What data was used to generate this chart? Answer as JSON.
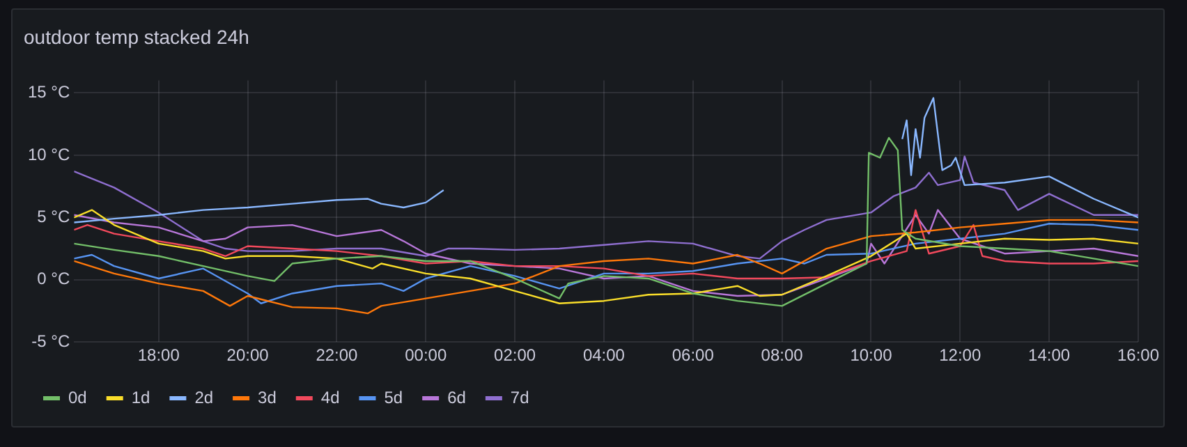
{
  "chart_data": {
    "type": "line",
    "title": "outdoor temp stacked 24h",
    "xlim": [
      "--01-01T16:06",
      "--01-02T16:00"
    ],
    "ylim": [
      -5,
      16
    ],
    "xticks": [
      {
        "value": "--01-01T18:00",
        "label": "18:00"
      },
      {
        "value": "--01-01T20:00",
        "label": "20:00"
      },
      {
        "value": "--01-01T22:00",
        "label": "22:00"
      },
      {
        "value": "--01-02T00:00",
        "label": "00:00"
      },
      {
        "value": "--01-02T02:00",
        "label": "02:00"
      },
      {
        "value": "--01-02T04:00",
        "label": "04:00"
      },
      {
        "value": "--01-02T06:00",
        "label": "06:00"
      },
      {
        "value": "--01-02T08:00",
        "label": "08:00"
      },
      {
        "value": "--01-02T10:00",
        "label": "10:00"
      },
      {
        "value": "--01-02T12:00",
        "label": "12:00"
      },
      {
        "value": "--01-02T14:00",
        "label": "14:00"
      },
      {
        "value": "--01-02T16:00",
        "label": "16:00"
      }
    ],
    "yticks": [
      {
        "value": -5,
        "label": "-5 °C"
      },
      {
        "value": 0,
        "label": "0 °C"
      },
      {
        "value": 5,
        "label": "5 °C"
      },
      {
        "value": 10,
        "label": "10 °C"
      },
      {
        "value": 15,
        "label": "15 °C"
      }
    ],
    "grid": true,
    "legend": "bottom left",
    "marker": "none",
    "line_style": "solid",
    "series": [
      {
        "name": "0d",
        "color": "#73bf69",
        "x": [
          "--01-01T16:06",
          "--01-01T17:00",
          "--01-01T18:00",
          "--01-01T19:00",
          "--01-01T20:00",
          "--01-01T20:36",
          "--01-01T21:00",
          "--01-01T22:00",
          "--01-01T23:00",
          "--01-02T00:00",
          "--01-02T01:00",
          "--01-02T02:00",
          "--01-02T03:00",
          "--01-02T03:12",
          "--01-02T04:00",
          "--01-02T05:00",
          "--01-02T06:00",
          "--01-02T07:00",
          "--01-02T08:00",
          "--01-02T09:00",
          "--01-02T09:54",
          "--01-02T09:57",
          "--01-02T10:12",
          "--01-02T10:24",
          "--01-02T10:36",
          "--01-02T10:42",
          "--01-02T11:00",
          "--01-02T12:00",
          "--01-02T13:00",
          "--01-02T14:00",
          "--01-02T15:00",
          "--01-02T16:00"
        ],
        "values": [
          2.9,
          2.4,
          1.9,
          1.1,
          0.3,
          -0.1,
          1.3,
          1.7,
          1.9,
          1.5,
          1.5,
          0.1,
          -1.5,
          -0.3,
          0.3,
          0.1,
          -1.1,
          -1.7,
          -2.1,
          -0.3,
          1.3,
          10.2,
          9.8,
          11.4,
          10.4,
          4.0,
          3.3,
          2.7,
          2.5,
          2.3,
          1.7,
          1.1
        ]
      },
      {
        "name": "1d",
        "color": "#fade2a",
        "x": [
          "--01-01T16:06",
          "--01-01T16:30",
          "--01-01T17:00",
          "--01-01T18:00",
          "--01-01T19:00",
          "--01-01T19:30",
          "--01-01T20:00",
          "--01-01T21:00",
          "--01-01T22:00",
          "--01-01T22:48",
          "--01-01T23:00",
          "--01-02T00:00",
          "--01-02T01:00",
          "--01-02T02:00",
          "--01-02T03:00",
          "--01-02T04:00",
          "--01-02T05:00",
          "--01-02T06:00",
          "--01-02T07:00",
          "--01-02T07:30",
          "--01-02T08:00",
          "--01-02T09:00",
          "--01-02T10:00",
          "--01-02T10:48",
          "--01-02T11:00",
          "--01-02T12:00",
          "--01-02T13:00",
          "--01-02T14:00",
          "--01-02T15:00",
          "--01-02T16:00"
        ],
        "values": [
          5.0,
          5.6,
          4.4,
          2.9,
          2.3,
          1.7,
          1.9,
          1.9,
          1.7,
          0.9,
          1.3,
          0.5,
          0.1,
          -0.9,
          -1.9,
          -1.7,
          -1.2,
          -1.1,
          -0.5,
          -1.3,
          -1.2,
          0.3,
          1.9,
          3.7,
          2.5,
          2.9,
          3.3,
          3.2,
          3.3,
          2.9
        ]
      },
      {
        "name": "2d",
        "color": "#8ab8ff",
        "x": [
          "--01-01T16:06",
          "--01-01T17:00",
          "--01-01T18:00",
          "--01-01T19:00",
          "--01-01T20:00",
          "--01-01T21:00",
          "--01-01T22:00",
          "--01-01T22:42",
          "--01-01T23:00",
          "--01-01T23:30",
          "--01-02T00:00",
          "--01-02T00:24",
          "--01-02T06:00",
          "--01-02T10:42",
          "--01-02T10:48",
          "--01-02T10:54",
          "--01-02T11:00",
          "--01-02T11:06",
          "--01-02T11:12",
          "--01-02T11:24",
          "--01-02T11:36",
          "--01-02T11:48",
          "--01-02T11:54",
          "--01-02T12:06",
          "--01-02T13:00",
          "--01-02T14:00",
          "--01-02T15:00",
          "--01-02T16:00"
        ],
        "values": [
          4.6,
          4.9,
          5.2,
          5.6,
          5.8,
          6.1,
          6.4,
          6.5,
          6.1,
          5.8,
          6.2,
          7.2,
          null,
          11.3,
          12.8,
          8.4,
          12.1,
          9.8,
          13.0,
          14.6,
          8.8,
          9.2,
          9.8,
          7.6,
          7.8,
          8.3,
          6.5,
          5.0
        ]
      },
      {
        "name": "3d",
        "color": "#ff780a",
        "x": [
          "--01-01T16:06",
          "--01-01T17:00",
          "--01-01T18:00",
          "--01-01T19:00",
          "--01-01T19:36",
          "--01-01T20:00",
          "--01-01T21:00",
          "--01-01T22:00",
          "--01-01T22:42",
          "--01-01T23:00",
          "--01-02T00:00",
          "--01-02T01:00",
          "--01-02T02:00",
          "--01-02T03:00",
          "--01-02T04:00",
          "--01-02T05:00",
          "--01-02T06:00",
          "--01-02T07:00",
          "--01-02T07:30",
          "--01-02T08:00",
          "--01-02T09:00",
          "--01-02T10:00",
          "--01-02T11:00",
          "--01-02T12:00",
          "--01-02T13:00",
          "--01-02T14:00",
          "--01-02T15:00",
          "--01-02T16:00"
        ],
        "values": [
          1.5,
          0.5,
          -0.3,
          -0.9,
          -2.1,
          -1.3,
          -2.2,
          -2.3,
          -2.7,
          -2.1,
          -1.5,
          -0.9,
          -0.3,
          1.1,
          1.5,
          1.7,
          1.3,
          2.0,
          1.3,
          0.5,
          2.5,
          3.5,
          3.8,
          4.2,
          4.5,
          4.8,
          4.8,
          4.6
        ]
      },
      {
        "name": "4d",
        "color": "#f2495c",
        "x": [
          "--01-01T16:06",
          "--01-01T16:24",
          "--01-01T17:00",
          "--01-01T18:00",
          "--01-01T19:00",
          "--01-01T19:30",
          "--01-01T20:00",
          "--01-01T21:00",
          "--01-01T22:00",
          "--01-01T23:00",
          "--01-02T00:00",
          "--01-02T01:00",
          "--01-02T02:00",
          "--01-02T03:00",
          "--01-02T04:00",
          "--01-02T05:00",
          "--01-02T06:00",
          "--01-02T07:00",
          "--01-02T08:00",
          "--01-02T09:00",
          "--01-02T10:00",
          "--01-02T10:48",
          "--01-02T11:00",
          "--01-02T11:18",
          "--01-02T12:00",
          "--01-02T12:18",
          "--01-02T12:30",
          "--01-02T13:00",
          "--01-02T14:00",
          "--01-02T15:00",
          "--01-02T16:00"
        ],
        "values": [
          4.0,
          4.4,
          3.7,
          3.1,
          2.5,
          1.9,
          2.7,
          2.5,
          2.3,
          1.9,
          1.3,
          1.5,
          1.1,
          1.1,
          0.9,
          0.3,
          0.5,
          0.1,
          0.1,
          0.2,
          1.5,
          2.3,
          5.6,
          2.1,
          2.7,
          4.4,
          1.9,
          1.5,
          1.3,
          1.3,
          1.5
        ]
      },
      {
        "name": "5d",
        "color": "#5794f2",
        "x": [
          "--01-01T16:06",
          "--01-01T16:30",
          "--01-01T17:00",
          "--01-01T18:00",
          "--01-01T19:00",
          "--01-01T20:00",
          "--01-01T20:18",
          "--01-01T21:00",
          "--01-01T22:00",
          "--01-01T23:00",
          "--01-01T23:30",
          "--01-02T00:00",
          "--01-02T01:00",
          "--01-02T02:00",
          "--01-02T03:00",
          "--01-02T04:00",
          "--01-02T05:00",
          "--01-02T06:00",
          "--01-02T07:00",
          "--01-02T08:00",
          "--01-02T08:30",
          "--01-02T09:00",
          "--01-02T10:00",
          "--01-02T11:00",
          "--01-02T12:00",
          "--01-02T13:00",
          "--01-02T14:00",
          "--01-02T15:00",
          "--01-02T16:00"
        ],
        "values": [
          1.7,
          2.0,
          1.1,
          0.1,
          0.9,
          -1.1,
          -1.9,
          -1.1,
          -0.5,
          -0.3,
          -0.9,
          0.1,
          1.1,
          0.3,
          -0.7,
          0.5,
          0.5,
          0.7,
          1.3,
          1.7,
          1.3,
          2.0,
          2.1,
          2.9,
          3.3,
          3.7,
          4.5,
          4.4,
          4.0
        ]
      },
      {
        "name": "6d",
        "color": "#b877d9",
        "x": [
          "--01-01T16:06",
          "--01-01T17:00",
          "--01-01T18:00",
          "--01-01T19:00",
          "--01-01T19:30",
          "--01-01T20:00",
          "--01-01T21:00",
          "--01-01T22:00",
          "--01-01T23:00",
          "--01-01T23:30",
          "--01-02T00:00",
          "--01-02T01:00",
          "--01-02T02:00",
          "--01-02T03:00",
          "--01-02T04:00",
          "--01-02T05:00",
          "--01-02T06:00",
          "--01-02T07:00",
          "--01-02T08:00",
          "--01-02T09:00",
          "--01-02T09:54",
          "--01-02T10:00",
          "--01-02T10:18",
          "--01-02T11:00",
          "--01-02T11:18",
          "--01-02T11:30",
          "--01-02T12:00",
          "--01-02T13:00",
          "--01-02T14:00",
          "--01-02T15:00",
          "--01-02T16:00"
        ],
        "values": [
          5.2,
          4.6,
          4.2,
          3.1,
          3.3,
          4.2,
          4.4,
          3.5,
          4.0,
          3.1,
          2.1,
          1.3,
          1.1,
          0.9,
          0.1,
          0.3,
          -0.9,
          -1.3,
          -1.2,
          0.1,
          1.3,
          2.9,
          1.3,
          5.2,
          3.7,
          5.6,
          3.3,
          2.1,
          2.3,
          2.5,
          1.9
        ]
      },
      {
        "name": "7d",
        "color": "#8f6fd0",
        "x": [
          "--01-01T16:06",
          "--01-01T17:00",
          "--01-01T18:00",
          "--01-01T19:00",
          "--01-01T19:30",
          "--01-01T20:00",
          "--01-01T21:00",
          "--01-01T22:00",
          "--01-01T23:00",
          "--01-02T00:00",
          "--01-02T00:30",
          "--01-02T01:00",
          "--01-02T02:00",
          "--01-02T03:00",
          "--01-02T04:00",
          "--01-02T05:00",
          "--01-02T06:00",
          "--01-02T07:00",
          "--01-02T07:30",
          "--01-02T08:00",
          "--01-02T08:30",
          "--01-02T09:00",
          "--01-02T10:00",
          "--01-02T10:30",
          "--01-02T11:00",
          "--01-02T11:18",
          "--01-02T11:30",
          "--01-02T12:00",
          "--01-02T12:06",
          "--01-02T12:18",
          "--01-02T13:00",
          "--01-02T13:18",
          "--01-02T14:00",
          "--01-02T15:00",
          "--01-02T16:00"
        ],
        "values": [
          8.7,
          7.4,
          5.4,
          3.1,
          2.5,
          2.3,
          2.3,
          2.5,
          2.5,
          1.9,
          2.5,
          2.5,
          2.4,
          2.5,
          2.8,
          3.1,
          2.9,
          1.9,
          1.7,
          3.1,
          4.0,
          4.8,
          5.4,
          6.7,
          7.4,
          8.6,
          7.6,
          8.0,
          9.9,
          7.8,
          7.2,
          5.6,
          6.9,
          5.2,
          5.2
        ]
      }
    ]
  }
}
